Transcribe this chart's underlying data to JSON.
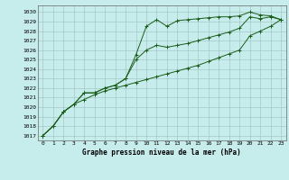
{
  "title": "Graphe pression niveau de la mer (hPa)",
  "bg_color": "#c6eceb",
  "grid_color": "#9dbfbf",
  "line_color": "#1a5c1a",
  "xlim": [
    -0.5,
    23.5
  ],
  "ylim": [
    1016.5,
    1030.7
  ],
  "xticks": [
    0,
    1,
    2,
    3,
    4,
    5,
    6,
    7,
    8,
    9,
    10,
    11,
    12,
    13,
    14,
    15,
    16,
    17,
    18,
    19,
    20,
    21,
    22,
    23
  ],
  "yticks": [
    1017,
    1018,
    1019,
    1020,
    1021,
    1022,
    1023,
    1024,
    1025,
    1026,
    1027,
    1028,
    1029,
    1030
  ],
  "series1": [
    1017.0,
    1018.0,
    1019.5,
    1020.3,
    1020.8,
    1021.3,
    1021.7,
    1022.0,
    1022.3,
    1022.6,
    1022.9,
    1023.2,
    1023.5,
    1023.8,
    1024.1,
    1024.4,
    1024.8,
    1025.2,
    1025.6,
    1026.0,
    1027.5,
    1028.0,
    1028.5,
    1029.2
  ],
  "series2": [
    1017.0,
    1018.0,
    1019.5,
    1020.3,
    1021.5,
    1021.5,
    1022.0,
    1022.3,
    1023.0,
    1025.0,
    1026.0,
    1026.5,
    1026.3,
    1026.5,
    1026.7,
    1027.0,
    1027.3,
    1027.6,
    1027.9,
    1028.3,
    1029.5,
    1029.3,
    1029.5,
    1029.2
  ],
  "series3": [
    1017.0,
    1018.0,
    1019.5,
    1020.3,
    1021.5,
    1021.5,
    1022.0,
    1022.3,
    1023.0,
    1025.5,
    1028.5,
    1029.2,
    1028.5,
    1029.1,
    1029.2,
    1029.3,
    1029.4,
    1029.5,
    1029.5,
    1029.6,
    1030.0,
    1029.7,
    1029.6,
    1029.2
  ]
}
